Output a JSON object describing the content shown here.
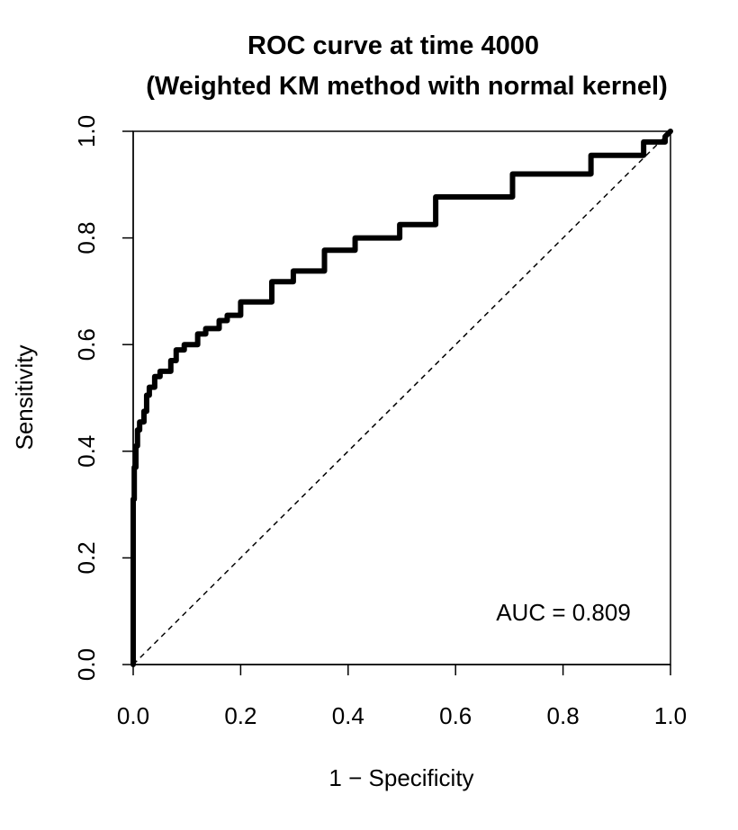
{
  "chart_data": {
    "type": "line",
    "title": "ROC curve at time 4000",
    "subtitle": "(Weighted KM method with normal kernel)",
    "xlabel": "1 − Specificity",
    "ylabel": "Sensitivity",
    "xlim": [
      0,
      1
    ],
    "ylim": [
      0,
      1
    ],
    "xticks": [
      "0.0",
      "0.2",
      "0.4",
      "0.6",
      "0.8",
      "1.0"
    ],
    "yticks": [
      "0.0",
      "0.2",
      "0.4",
      "0.6",
      "0.8",
      "1.0"
    ],
    "grid": false,
    "annotation": "AUC = 0.809",
    "series": [
      {
        "style": "step",
        "color": "#000000",
        "x": [
          0.0,
          0.0,
          0.002,
          0.002,
          0.005,
          0.005,
          0.008,
          0.008,
          0.012,
          0.012,
          0.02,
          0.02,
          0.025,
          0.025,
          0.03,
          0.03,
          0.04,
          0.04,
          0.05,
          0.05,
          0.07,
          0.07,
          0.08,
          0.08,
          0.095,
          0.095,
          0.12,
          0.12,
          0.135,
          0.135,
          0.16,
          0.16,
          0.175,
          0.175,
          0.2,
          0.2,
          0.258,
          0.258,
          0.298,
          0.298,
          0.356,
          0.356,
          0.413,
          0.413,
          0.496,
          0.496,
          0.563,
          0.563,
          0.706,
          0.706,
          0.852,
          0.852,
          0.95,
          0.95,
          0.99,
          0.99,
          1.0
        ],
        "y": [
          0.0,
          0.31,
          0.31,
          0.37,
          0.37,
          0.41,
          0.41,
          0.44,
          0.44,
          0.455,
          0.455,
          0.475,
          0.475,
          0.505,
          0.505,
          0.52,
          0.52,
          0.54,
          0.54,
          0.55,
          0.55,
          0.57,
          0.57,
          0.59,
          0.59,
          0.6,
          0.6,
          0.62,
          0.62,
          0.63,
          0.63,
          0.645,
          0.645,
          0.655,
          0.655,
          0.68,
          0.68,
          0.718,
          0.718,
          0.738,
          0.738,
          0.777,
          0.777,
          0.8,
          0.8,
          0.825,
          0.825,
          0.877,
          0.877,
          0.92,
          0.92,
          0.955,
          0.955,
          0.98,
          0.98,
          0.99,
          1.0
        ]
      },
      {
        "style": "dashed",
        "color": "#000000",
        "x": [
          0,
          1
        ],
        "y": [
          0,
          1
        ]
      }
    ]
  }
}
